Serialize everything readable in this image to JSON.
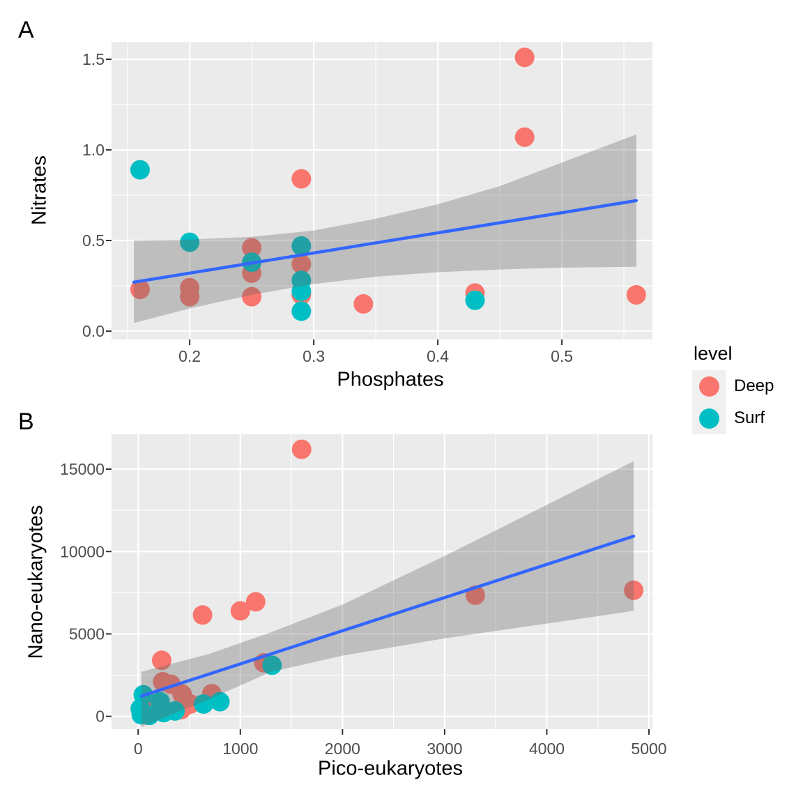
{
  "figure": {
    "panel_bg": "#EBEBEB",
    "grid_color": "#FFFFFF",
    "band_fill": "rgba(100,100,100,0.33)",
    "smooth_line_color": "#3366FF",
    "tick_mark_color": "#333333",
    "tick_label_color": "#4D4D4D"
  },
  "legend": {
    "title": "level",
    "items": [
      {
        "label": "Deep",
        "color": "#F8766D"
      },
      {
        "label": "Surf",
        "color": "#00BFC4"
      }
    ]
  },
  "chart_data": [
    {
      "id": "A",
      "type": "scatter",
      "tag": "A",
      "xlabel": "Phosphates",
      "ylabel": "Nitrates",
      "xlim": [
        0.137,
        0.573
      ],
      "ylim": [
        -0.046,
        1.596
      ],
      "xticks": {
        "values": [
          0.2,
          0.3,
          0.4,
          0.5
        ],
        "labels": [
          "0.2",
          "0.3",
          "0.4",
          "0.5"
        ]
      },
      "yticks": {
        "values": [
          0.0,
          0.5,
          1.0,
          1.5
        ],
        "labels": [
          "0.0",
          "0.5",
          "1.0",
          "1.5"
        ]
      },
      "x_minor": [
        0.15,
        0.25,
        0.35,
        0.45,
        0.55
      ],
      "y_minor": [
        0.25,
        0.75,
        1.25
      ],
      "series": [
        {
          "name": "Deep",
          "color": "#F8766D",
          "points": [
            [
              0.47,
              1.51
            ],
            [
              0.47,
              1.07
            ],
            [
              0.29,
              0.84
            ],
            [
              0.16,
              0.23
            ],
            [
              0.2,
              0.24
            ],
            [
              0.2,
              0.19
            ],
            [
              0.25,
              0.46
            ],
            [
              0.25,
              0.32
            ],
            [
              0.25,
              0.19
            ],
            [
              0.29,
              0.37
            ],
            [
              0.29,
              0.2
            ],
            [
              0.34,
              0.15
            ],
            [
              0.43,
              0.21
            ],
            [
              0.56,
              0.2
            ]
          ]
        },
        {
          "name": "Surf",
          "color": "#00BFC4",
          "points": [
            [
              0.16,
              0.89
            ],
            [
              0.2,
              0.49
            ],
            [
              0.25,
              0.38
            ],
            [
              0.29,
              0.47
            ],
            [
              0.29,
              0.28
            ],
            [
              0.29,
              0.22
            ],
            [
              0.29,
              0.11
            ],
            [
              0.43,
              0.17
            ]
          ]
        }
      ],
      "smooth": {
        "line": [
          [
            0.155,
            0.27
          ],
          [
            0.56,
            0.72
          ]
        ],
        "band": [
          [
            0.155,
            0.045,
            0.5
          ],
          [
            0.2,
            0.125,
            0.505
          ],
          [
            0.25,
            0.2,
            0.52
          ],
          [
            0.3,
            0.26,
            0.555
          ],
          [
            0.35,
            0.3,
            0.62
          ],
          [
            0.4,
            0.325,
            0.7
          ],
          [
            0.45,
            0.34,
            0.8
          ],
          [
            0.5,
            0.35,
            0.93
          ],
          [
            0.56,
            0.355,
            1.085
          ]
        ]
      }
    },
    {
      "id": "B",
      "type": "scatter",
      "tag": "B",
      "xlabel": "Pico-eukaryotes",
      "ylabel": "Nano-eukaryotes",
      "xlim": [
        -261,
        5034
      ],
      "ylim": [
        -774,
        17114
      ],
      "xticks": {
        "values": [
          0,
          1000,
          2000,
          3000,
          4000,
          5000
        ],
        "labels": [
          "0",
          "1000",
          "2000",
          "3000",
          "4000",
          "5000"
        ]
      },
      "yticks": {
        "values": [
          0,
          5000,
          10000,
          15000
        ],
        "labels": [
          "0",
          "5000",
          "10000",
          "15000"
        ]
      },
      "x_minor": [
        500,
        1500,
        2500,
        3500,
        4500
      ],
      "y_minor": [
        2500,
        7500,
        12500
      ],
      "series": [
        {
          "name": "Deep",
          "color": "#F8766D",
          "points": [
            [
              1600,
              16200
            ],
            [
              630,
              6150
            ],
            [
              1000,
              6400
            ],
            [
              1150,
              6950
            ],
            [
              230,
              3400
            ],
            [
              1230,
              3250
            ],
            [
              3300,
              7350
            ],
            [
              4850,
              7650
            ],
            [
              240,
              2100
            ],
            [
              320,
              1950
            ],
            [
              180,
              610
            ],
            [
              420,
              400
            ],
            [
              430,
              1350
            ],
            [
              510,
              750
            ],
            [
              720,
              1380
            ]
          ]
        },
        {
          "name": "Surf",
          "color": "#00BFC4",
          "points": [
            [
              20,
              470
            ],
            [
              30,
              100
            ],
            [
              50,
              1310
            ],
            [
              110,
              60
            ],
            [
              215,
              890
            ],
            [
              250,
              230
            ],
            [
              360,
              330
            ],
            [
              640,
              750
            ],
            [
              800,
              890
            ],
            [
              1310,
              3100
            ]
          ]
        }
      ],
      "smooth": {
        "line": [
          [
            30,
            1230
          ],
          [
            4850,
            10930
          ]
        ],
        "band": [
          [
            30,
            -650,
            2700
          ],
          [
            700,
            1050,
            3800
          ],
          [
            1300,
            2700,
            5100
          ],
          [
            2000,
            3680,
            6780
          ],
          [
            3000,
            4730,
            9730
          ],
          [
            4000,
            5630,
            12830
          ],
          [
            4850,
            6400,
            15480
          ]
        ]
      }
    }
  ]
}
